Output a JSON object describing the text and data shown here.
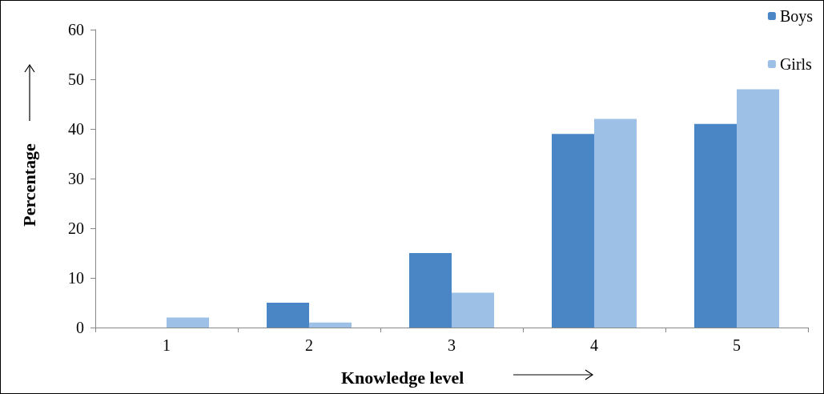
{
  "chart_data": {
    "type": "bar",
    "xlabel": "Knowledge level",
    "ylabel": "Percentage",
    "categories": [
      "1",
      "2",
      "3",
      "4",
      "5"
    ],
    "series": [
      {
        "name": "Boys",
        "color": "#4a86c5",
        "values": [
          0,
          5,
          15,
          39,
          41
        ]
      },
      {
        "name": "Girls",
        "color": "#9dc0e6",
        "values": [
          2,
          1,
          7,
          42,
          48
        ]
      }
    ],
    "ylim": [
      0,
      60
    ],
    "yticks": [
      0,
      10,
      20,
      30,
      40,
      50,
      60
    ],
    "legend": "top right"
  }
}
